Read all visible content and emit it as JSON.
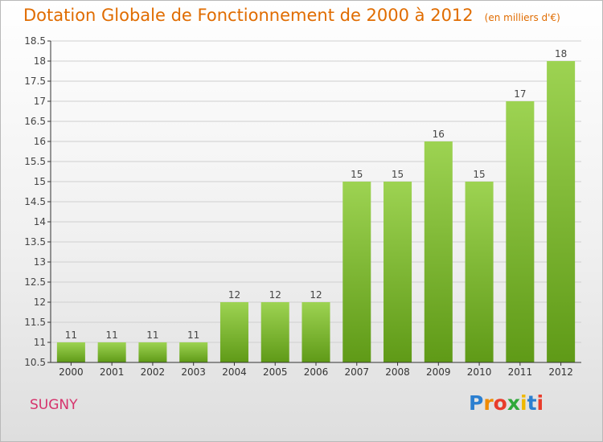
{
  "chart_data": {
    "type": "bar",
    "title": "Dotation Globale de Fonctionnement de 2000 à 2012",
    "unit": "(en milliers d'€)",
    "categories": [
      "2000",
      "2001",
      "2002",
      "2003",
      "2004",
      "2005",
      "2006",
      "2007",
      "2008",
      "2009",
      "2010",
      "2011",
      "2012"
    ],
    "values": [
      11,
      11,
      11,
      11,
      12,
      12,
      12,
      15,
      15,
      16,
      15,
      17,
      18
    ],
    "data_labels": [
      "11",
      "11",
      "11",
      "11",
      "12",
      "12",
      "12",
      "15",
      "15",
      "16",
      "15",
      "17",
      "18"
    ],
    "ylim": [
      10.5,
      18.5
    ],
    "yticks": [
      10.5,
      11,
      11.5,
      12,
      12.5,
      13,
      13.5,
      14,
      14.5,
      15,
      15.5,
      16,
      16.5,
      17,
      17.5,
      18,
      18.5
    ],
    "grid": true,
    "bar_color_top": "#9dd352",
    "bar_color_bottom": "#5f9a17"
  },
  "commune": "SUGNY",
  "logo": {
    "letters": [
      "P",
      "r",
      "o",
      "x",
      "i",
      "t",
      "i"
    ],
    "colors": [
      "#2b7fd0",
      "#f08a00",
      "#e93c2b",
      "#2fa83a",
      "#f0b800",
      "#2b7fd0",
      "#e93c2b"
    ]
  },
  "colors": {
    "title": "#e06c00",
    "commune": "#d6336c",
    "grid": "#cfcfcf",
    "axis": "#333333"
  }
}
